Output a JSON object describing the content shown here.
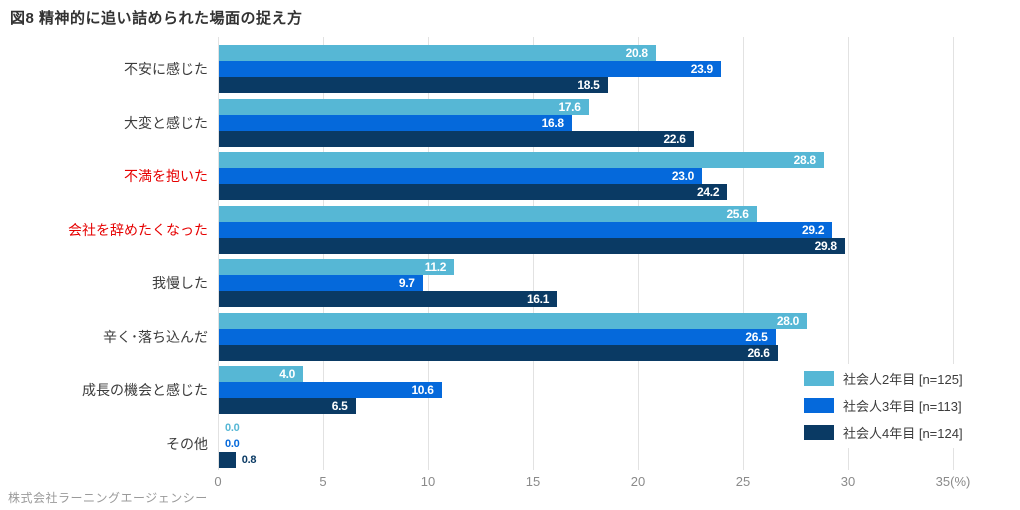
{
  "title": "図8 精神的に追い詰められた場面の捉え方",
  "footer": "株式会社ラーニングエージェンシー",
  "colors": {
    "series": [
      "#56b7d5",
      "#0569db",
      "#0a3a64"
    ],
    "emphasis_label": "#e60000",
    "category_label": "#3c3c3c",
    "grid": "#e2e2e2",
    "tick_text": "#8a8a8a",
    "value_text_inside": "#ffffff"
  },
  "chart_data": {
    "type": "bar",
    "orientation": "horizontal",
    "title": "図8 精神的に追い詰められた場面の捉え方",
    "xlabel": "(%)",
    "xlim": [
      0,
      35
    ],
    "grid": true,
    "legend_position": "right-bottom",
    "categories": [
      {
        "label": "不安に感じた",
        "emphasis": false
      },
      {
        "label": "大変と感じた",
        "emphasis": false
      },
      {
        "label": "不満を抱いた",
        "emphasis": true
      },
      {
        "label": "会社を辞めたくなった",
        "emphasis": true
      },
      {
        "label": "我慢した",
        "emphasis": false
      },
      {
        "label": "辛く･落ち込んだ",
        "emphasis": false
      },
      {
        "label": "成長の機会と感じた",
        "emphasis": false
      },
      {
        "label": "その他",
        "emphasis": false
      }
    ],
    "series": [
      {
        "name": "社会人2年目 [n=125]",
        "color": "#56b7d5",
        "values": [
          20.8,
          17.6,
          28.8,
          25.6,
          11.2,
          28.0,
          4.0,
          0.0
        ]
      },
      {
        "name": "社会人3年目 [n=113]",
        "color": "#0569db",
        "values": [
          23.9,
          16.8,
          23.0,
          29.2,
          9.7,
          26.5,
          10.6,
          0.0
        ]
      },
      {
        "name": "社会人4年目 [n=124]",
        "color": "#0a3a64",
        "values": [
          18.5,
          22.6,
          24.2,
          29.8,
          16.1,
          26.6,
          6.5,
          0.8
        ]
      }
    ],
    "x_ticks": [
      {
        "value": 0,
        "label": "0"
      },
      {
        "value": 5,
        "label": "5"
      },
      {
        "value": 10,
        "label": "10"
      },
      {
        "value": 15,
        "label": "15"
      },
      {
        "value": 20,
        "label": "20"
      },
      {
        "value": 25,
        "label": "25"
      },
      {
        "value": 30,
        "label": "30"
      },
      {
        "value": 35,
        "label": "35(%)"
      }
    ]
  }
}
